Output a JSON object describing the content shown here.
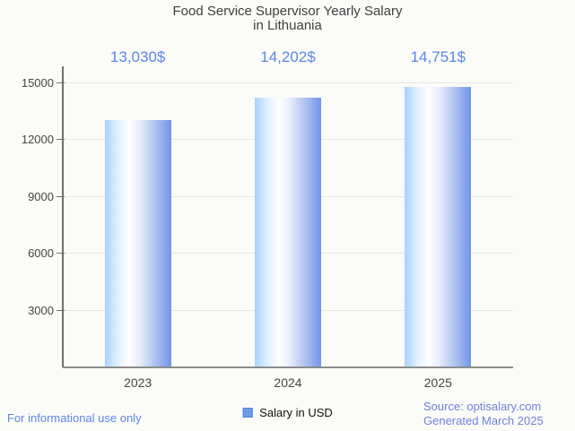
{
  "title": {
    "line1": "Food Service Supervisor Yearly Salary",
    "line2": "in Lithuania"
  },
  "chart_data": {
    "type": "bar",
    "title": "Food Service Supervisor Yearly Salary in Lithuania",
    "categories": [
      "2023",
      "2024",
      "2025"
    ],
    "series": [
      {
        "name": "Salary in USD",
        "values": [
          13030,
          14202,
          14751
        ],
        "value_labels": [
          "13,030$",
          "14,202$",
          "14,751$"
        ]
      }
    ],
    "xlabel": "",
    "ylabel": "",
    "ylim": [
      0,
      15000
    ],
    "yticks": [
      3000,
      6000,
      9000,
      12000,
      15000
    ],
    "grid": true,
    "legend_position": "bottom-center"
  },
  "legend": {
    "label": "Salary in USD"
  },
  "footer": {
    "left": "For informational use only",
    "source_line1": "Source: optisalary.com",
    "source_line2": "Generated March 2025"
  },
  "colors": {
    "background": "#fbfbf8",
    "bar_gradient_left": "#a9d2fa",
    "bar_gradient_mid": "#ffffff",
    "bar_gradient_right": "#7195e7",
    "value_label_text": "#5b87e8",
    "title_text": "#3f3f3f",
    "axis_text": "#454545",
    "gridline": "#e7e7e5",
    "axis_line": "#6f6f6f",
    "baseline": "#8c8c8c",
    "legend_swatch": "#6d9eec",
    "footer_left_text": "#5b87e8",
    "footer_right_text": "#6d83d8"
  }
}
